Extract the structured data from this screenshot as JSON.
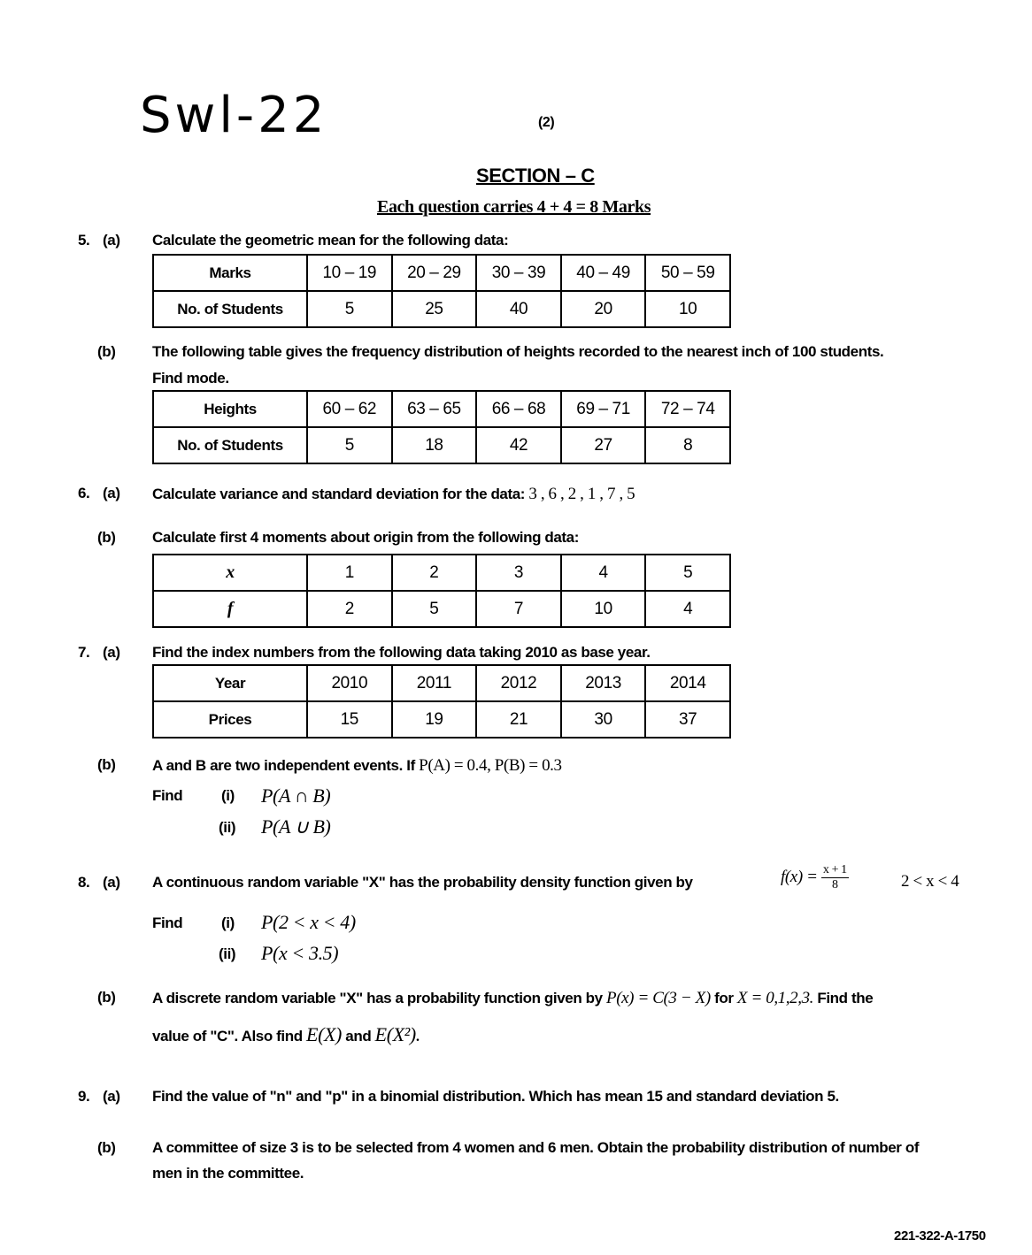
{
  "header": {
    "handwritten": "Swl-22",
    "page_number": "(2)",
    "section_title": "SECTION – C",
    "marks_note": "Each question carries 4 + 4 = 8 Marks"
  },
  "q5": {
    "a": {
      "num": "5.",
      "part": "(a)",
      "text": "Calculate the geometric mean for the following data:",
      "table": [
        [
          "Marks",
          "10 – 19",
          "20 – 29",
          "30 – 39",
          "40 – 49",
          "50 – 59"
        ],
        [
          "No. of Students",
          "5",
          "25",
          "40",
          "20",
          "10"
        ]
      ]
    },
    "b": {
      "part": "(b)",
      "text": "The following table gives the frequency distribution of heights recorded to the nearest inch of 100 students.",
      "text2": "Find mode.",
      "table": [
        [
          "Heights",
          "60 – 62",
          "63 – 65",
          "66 – 68",
          "69 – 71",
          "72 – 74"
        ],
        [
          "No. of Students",
          "5",
          "18",
          "42",
          "27",
          "8"
        ]
      ]
    }
  },
  "q6": {
    "a": {
      "num": "6.",
      "part": "(a)",
      "text": "Calculate variance and standard deviation for the data:",
      "data": "3 , 6 , 2 , 1 , 7 , 5"
    },
    "b": {
      "part": "(b)",
      "text": "Calculate first 4 moments about origin from the following data:",
      "table": [
        [
          "x",
          "1",
          "2",
          "3",
          "4",
          "5"
        ],
        [
          "f",
          "2",
          "5",
          "7",
          "10",
          "4"
        ]
      ]
    }
  },
  "q7": {
    "a": {
      "num": "7.",
      "part": "(a)",
      "text": "Find the index numbers from the following data taking 2010 as base year.",
      "table": [
        [
          "Year",
          "2010",
          "2011",
          "2012",
          "2013",
          "2014"
        ],
        [
          "Prices",
          "15",
          "19",
          "21",
          "30",
          "37"
        ]
      ]
    },
    "b": {
      "part": "(b)",
      "text": "A and B are two independent events. If",
      "math": "P(A) = 0.4, P(B) = 0.3",
      "find": "Find",
      "i": "(i)",
      "i_expr": "P(A ∩ B)",
      "ii": "(ii)",
      "ii_expr": "P(A ∪ B)"
    }
  },
  "q8": {
    "a": {
      "num": "8.",
      "part": "(a)",
      "text": "A continuous random variable \"X\" has the probability density function given by",
      "fx": "f(x) =",
      "frac_num": "x + 1",
      "frac_den": "8",
      "range": "2 < x < 4",
      "find": "Find",
      "i": "(i)",
      "i_expr": "P(2 < x < 4)",
      "ii": "(ii)",
      "ii_expr": "P(x < 3.5)"
    },
    "b": {
      "part": "(b)",
      "text": "A discrete random variable \"X\" has a probability function given by",
      "math": "P(x) = C(3 − X)",
      "for": "for",
      "xvals": "X = 0,1,2,3.",
      "text_end": "Find the",
      "line2a": "value of \"C\". Also find",
      "ex": "E(X)",
      "and": "and",
      "ex2": "E(X²)."
    }
  },
  "q9": {
    "a": {
      "num": "9.",
      "part": "(a)",
      "text": "Find the value of \"n\" and \"p\" in a binomial distribution. Which has mean 15 and standard deviation 5."
    },
    "b": {
      "part": "(b)",
      "text": "A committee of size 3 is to be selected from 4 women and 6 men. Obtain the probability distribution of number of",
      "text2": "men in the committee."
    }
  },
  "footer": {
    "code": "221-322-A-1750"
  }
}
